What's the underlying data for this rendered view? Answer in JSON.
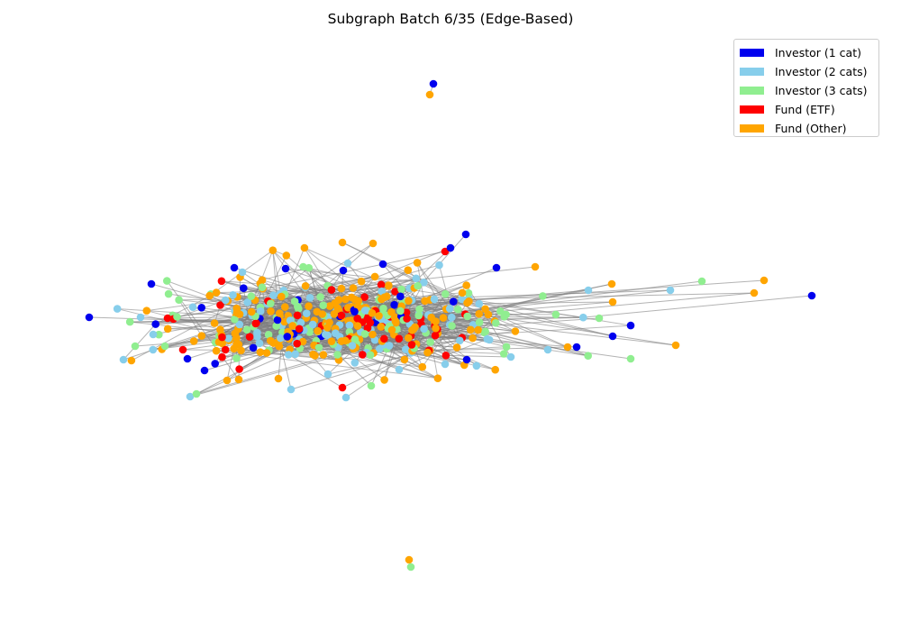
{
  "figure": {
    "title": "Subgraph Batch 6/35 (Edge-Based)"
  },
  "legend": {
    "items": [
      {
        "label": "Investor (1 cat)",
        "color": "#0000ee"
      },
      {
        "label": "Investor (2 cats)",
        "color": "#87ceeb"
      },
      {
        "label": "Investor (3 cats)",
        "color": "#90ee90"
      },
      {
        "label": "Fund (ETF)",
        "color": "#ff0000"
      },
      {
        "label": "Fund (Other)",
        "color": "#ffa500"
      }
    ]
  },
  "graph": {
    "edge_color": "#808080",
    "node_categories": [
      "Investor (1 cat)",
      "Investor (2 cats)",
      "Investor (3 cats)",
      "Fund (ETF)",
      "Fund (Other)"
    ]
  }
}
